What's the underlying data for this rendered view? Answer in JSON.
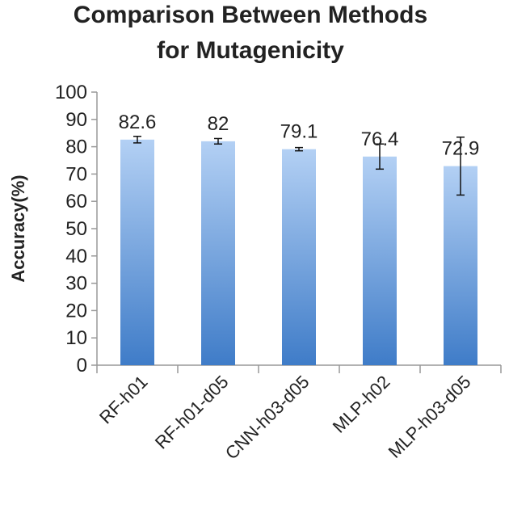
{
  "chart_data": {
    "type": "bar",
    "title_lines": [
      "Comparison Between Methods",
      "for Mutagenicity"
    ],
    "xlabel": "",
    "ylabel": "Accuracy(%)",
    "ylim": [
      0,
      100
    ],
    "yticks": [
      0,
      10,
      20,
      30,
      40,
      50,
      60,
      70,
      80,
      90,
      100
    ],
    "categories": [
      "RF-h01",
      "RF-h01-d05",
      "CNN-h03-d05",
      "MLP-h02",
      "MLP-h03-d05"
    ],
    "values": [
      82.6,
      82,
      79.1,
      76.4,
      72.9
    ],
    "data_labels": [
      "82.6",
      "82",
      "79.1",
      "76.4",
      "72.9"
    ],
    "error": [
      1.2,
      1.0,
      0.6,
      4.6,
      10.6
    ],
    "legend": "none",
    "grid": false,
    "bar_colors": {
      "light": "#b3d0f4",
      "dark": "#3f7cc8"
    },
    "axis_color": "#999999"
  }
}
